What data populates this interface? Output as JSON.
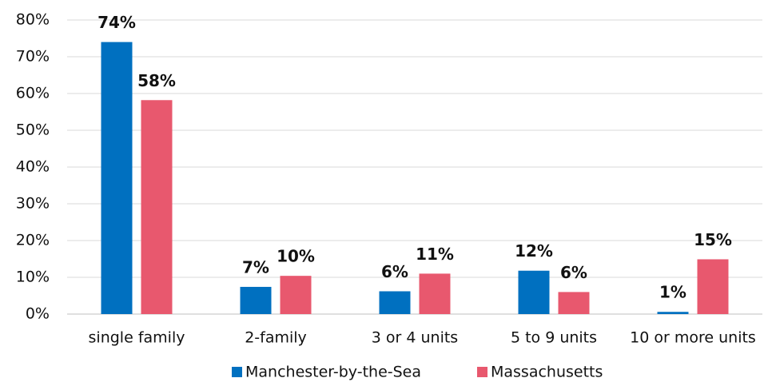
{
  "chart_data": {
    "type": "bar",
    "categories": [
      "single family",
      "2-family",
      "3 or 4 units",
      "5 to 9 units",
      "10 or more units"
    ],
    "series": [
      {
        "name": "Manchester-by-the-Sea",
        "color": "#0070c0",
        "values": [
          74,
          7.4,
          6.2,
          11.8,
          0.6
        ],
        "value_labels": [
          "74%",
          "7%",
          "6%",
          "12%",
          "1%"
        ]
      },
      {
        "name": "Massachusetts",
        "color": "#e8586e",
        "values": [
          58.2,
          10.4,
          11,
          6,
          14.9
        ],
        "value_labels": [
          "58%",
          "10%",
          "11%",
          "6%",
          "15%"
        ]
      }
    ],
    "ylim": [
      0,
      80
    ],
    "yticks": [
      {
        "value": 0,
        "label": "0%"
      },
      {
        "value": 10,
        "label": "10%"
      },
      {
        "value": 20,
        "label": "20%"
      },
      {
        "value": 30,
        "label": "30%"
      },
      {
        "value": 40,
        "label": "40%"
      },
      {
        "value": 50,
        "label": "50%"
      },
      {
        "value": 60,
        "label": "60%"
      },
      {
        "value": 70,
        "label": "70%"
      },
      {
        "value": 80,
        "label": "80%"
      }
    ],
    "grid": true,
    "legend": "bottom"
  }
}
